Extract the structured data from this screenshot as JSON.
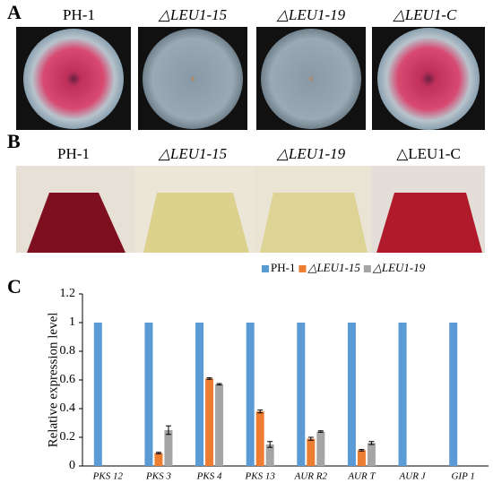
{
  "panel_a": {
    "letter": "A",
    "labels": [
      "PH-1",
      "△LEU1-15",
      "△LEU1-19",
      "△LEU1-C"
    ]
  },
  "panel_b": {
    "letter": "B",
    "labels": [
      "PH-1",
      "△LEU1-15",
      "△LEU1-19",
      "△LEU1-C"
    ]
  },
  "panel_c": {
    "letter": "C"
  },
  "chart_data": {
    "type": "bar",
    "y_label": "Relative expression level",
    "categories": [
      "PKS 12",
      "PKS 3",
      "PKS 4",
      "PKS 13",
      "AUR R2",
      "AUR T",
      "AUR J",
      "GIP 1"
    ],
    "series": [
      {
        "name": "PH-1",
        "color": "#5b9bd5",
        "values": [
          1,
          1,
          1,
          1,
          1,
          1,
          1,
          1
        ]
      },
      {
        "name": "△LEU1-15",
        "color": "#ed7d31",
        "values": [
          0,
          0.09,
          0.61,
          0.38,
          0.19,
          0.11,
          0,
          0
        ],
        "errors": [
          0,
          0.005,
          0.005,
          0.01,
          0.01,
          0.005,
          0,
          0
        ]
      },
      {
        "name": "△LEU1-19",
        "color": "#a5a5a5",
        "values": [
          0,
          0.25,
          0.57,
          0.15,
          0.24,
          0.16,
          0,
          0
        ],
        "errors": [
          0,
          0.03,
          0.005,
          0.02,
          0.005,
          0.01,
          0,
          0
        ]
      }
    ],
    "ylim": [
      0,
      1.2
    ],
    "yticks": [
      0,
      0.2,
      0.4,
      0.6,
      0.8,
      1,
      1.2
    ],
    "grid": false,
    "legend": "top-right"
  }
}
